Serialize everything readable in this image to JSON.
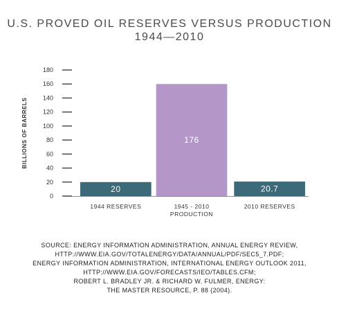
{
  "title_line1": "U.S. PROVED OIL RESERVES VERSUS PRODUCTION",
  "title_line2": "1944—2010",
  "chart_data": {
    "type": "bar",
    "categories": [
      "1944 RESERVES",
      "1945 - 2010 PRODUCTION",
      "2010 RESERVES"
    ],
    "category_lines": [
      [
        "1944 RESERVES"
      ],
      [
        "1945 - 2010",
        "PRODUCTION"
      ],
      [
        "2010 RESERVES"
      ]
    ],
    "values": [
      20,
      176,
      20.7
    ],
    "data_labels": [
      "20",
      "176",
      "20.7"
    ],
    "bar_colors": [
      "#3d6a78",
      "#b497c8",
      "#3d6a78"
    ],
    "ylabel": "BILLIONS OF BARRELS",
    "xlabel": "",
    "ylim": [
      0,
      180
    ],
    "yticks": [
      0,
      20,
      40,
      60,
      80,
      100,
      120,
      140,
      160,
      180
    ],
    "display_cap": 160
  },
  "source_lines": [
    "SOURCE: ENERGY INFORMATION ADMINISTRATION, ANNUAL ENERGY REVIEW,",
    "HTTP://WWW.EIA.GOV/TOTALENERGY/DATA/ANNUAL/PDF/SEC5_7.PDF;",
    "ENERGY INFORMATION ADMINISTRATION, INTERNATIONAL ENERGY OUTLOOK 2011,",
    "HTTP://WWW.EIA.GOV/FORECASTS/IEO/TABLES.CFM;",
    "ROBERT L. BRADLEY JR. & RICHARD W. FULMER, ENERGY:",
    "THE MASTER RESOURCE, P. 88 (2004)."
  ]
}
